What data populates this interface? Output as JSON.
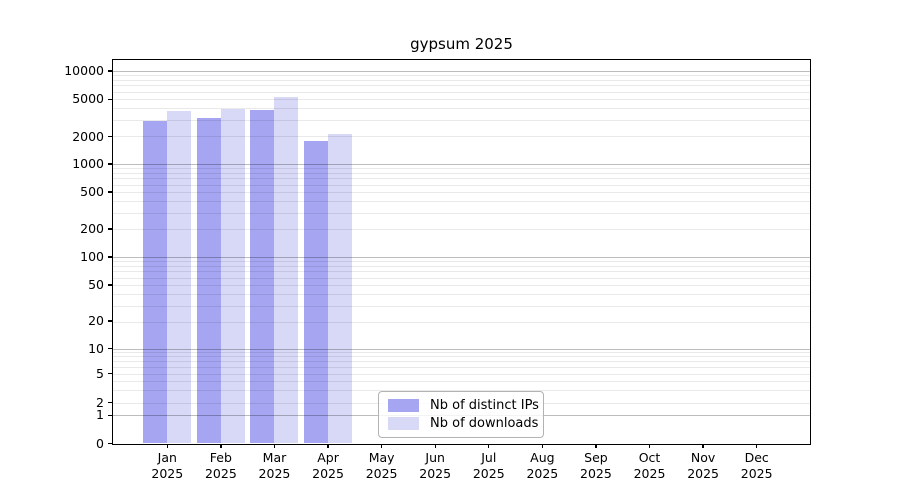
{
  "chart_data": {
    "type": "bar",
    "title": "gypsum 2025",
    "yscale": "symlog",
    "grid": true,
    "ylim": [
      0,
      12800
    ],
    "categories": [
      "Jan 2025",
      "Feb 2025",
      "Mar 2025",
      "Apr 2025",
      "May 2025",
      "Jun 2025",
      "Jul 2025",
      "Aug 2025",
      "Sep 2025",
      "Oct 2025",
      "Nov 2025",
      "Dec 2025"
    ],
    "series": [
      {
        "name": "Nb of distinct IPs",
        "color": "#a5a5f2",
        "values": [
          2900,
          3100,
          3800,
          1750,
          null,
          null,
          null,
          null,
          null,
          null,
          null,
          null
        ]
      },
      {
        "name": "Nb of downloads",
        "color": "#d8d8f7",
        "values": [
          3750,
          3900,
          5200,
          2100,
          null,
          null,
          null,
          null,
          null,
          null,
          null,
          null
        ]
      }
    ],
    "yticks": [
      "10000",
      "5000",
      "2000",
      "1000",
      "500",
      "200",
      "100",
      "50",
      "20",
      "10",
      "5",
      "2",
      "1",
      "0"
    ],
    "legend_position": "lower center"
  }
}
